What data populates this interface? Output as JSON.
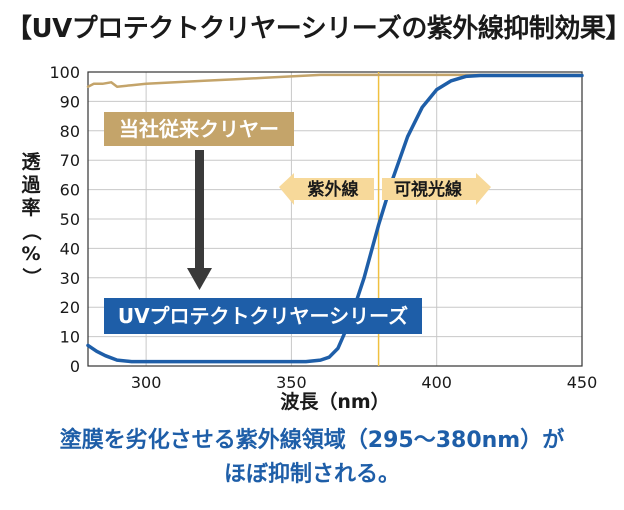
{
  "title": "【UVプロテクトクリヤーシリーズの紫外線抑制効果】",
  "caption": {
    "line1": "塗膜を劣化させる紫外線領域（295〜380nm）が",
    "line2": "ほぼ抑制される。"
  },
  "chart_data": {
    "type": "line",
    "xlabel": "波長（nm）",
    "ylabel": "透過率（%）",
    "xlim": [
      280,
      450
    ],
    "ylim": [
      0,
      100
    ],
    "xticks": [
      300,
      350,
      400,
      450
    ],
    "yticks": [
      0,
      10,
      20,
      30,
      40,
      50,
      60,
      70,
      80,
      90,
      100
    ],
    "grid": true,
    "vline_x": 380,
    "series": [
      {
        "name": "当社従来クリヤー",
        "color": "#c4a46a",
        "x": [
          280,
          282,
          285,
          288,
          290,
          295,
          300,
          310,
          320,
          330,
          340,
          350,
          360,
          370,
          380,
          400,
          420,
          450
        ],
        "y": [
          95,
          96,
          96,
          96.5,
          95,
          95.5,
          96,
          96.5,
          97,
          97.5,
          98,
          98.5,
          99,
          99,
          99,
          99,
          99,
          99
        ]
      },
      {
        "name": "UVプロテクトクリヤーシリーズ",
        "color": "#1e5ea8",
        "x": [
          280,
          283,
          286,
          290,
          295,
          300,
          310,
          320,
          330,
          340,
          350,
          355,
          360,
          363,
          366,
          370,
          375,
          380,
          385,
          390,
          395,
          400,
          405,
          410,
          415,
          420,
          430,
          440,
          450
        ],
        "y": [
          7,
          5,
          3.5,
          2,
          1.5,
          1.5,
          1.5,
          1.5,
          1.5,
          1.5,
          1.5,
          1.5,
          2,
          3,
          6,
          15,
          30,
          48,
          64,
          78,
          88,
          94,
          97,
          98.5,
          98.8,
          98.8,
          98.8,
          98.8,
          98.8
        ]
      }
    ],
    "labels": {
      "conventional": "当社従来クリヤー",
      "uv_protect": "UVプロテクトクリヤーシリーズ",
      "uv_region": "紫外線",
      "visible_region": "可視光線"
    },
    "colors": {
      "grid": "#c8c8c8",
      "axis": "#333333",
      "vline": "#f0c040",
      "uv_arrow": "#f7d99a",
      "arrow_dark": "#3a3a3a"
    }
  }
}
